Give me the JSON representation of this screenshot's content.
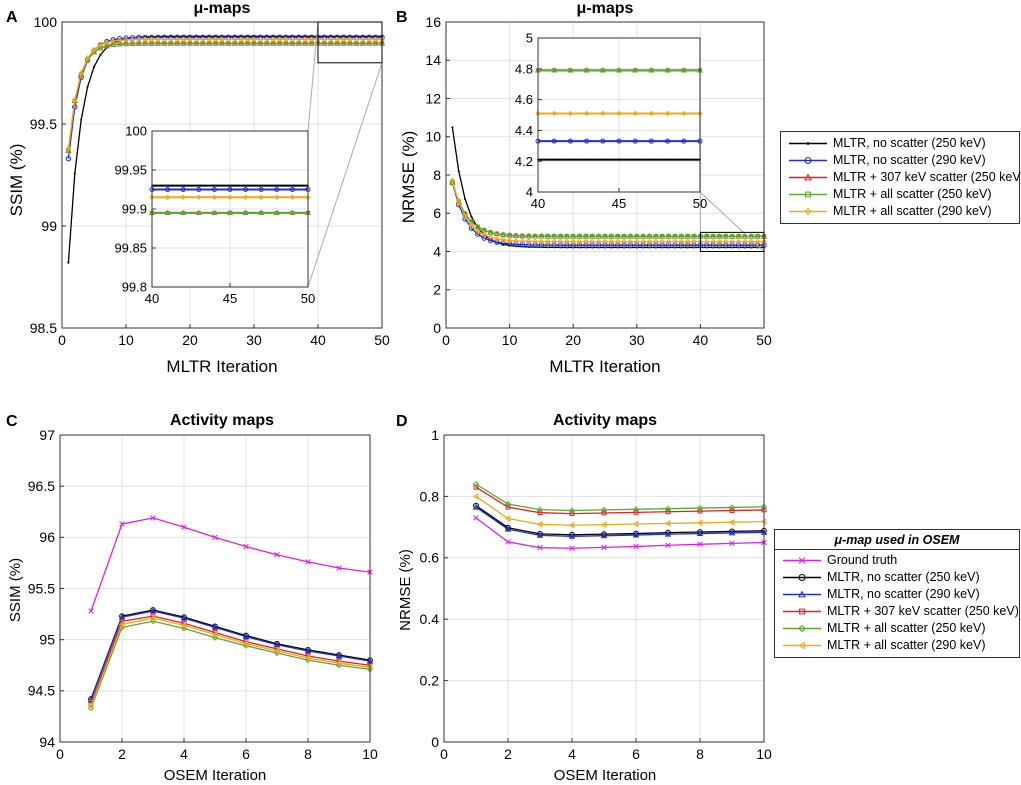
{
  "panels": [
    {
      "letter": "A",
      "title": "μ-maps",
      "xlabel": "MLTR Iteration",
      "ylabel": "SSIM (%)",
      "xlim": [
        0,
        50
      ],
      "ylim": [
        98.5,
        100
      ],
      "xticks": [
        "0",
        "10",
        "20",
        "30",
        "40",
        "50"
      ],
      "yticks": [
        "98.5",
        "99",
        "99.5",
        "100"
      ],
      "inset": {
        "xlim": [
          40,
          50
        ],
        "ylim": [
          99.8,
          100
        ],
        "xticks": [
          "40",
          "45",
          "50"
        ],
        "yticks": [
          "99.8",
          "99.85",
          "99.9",
          "99.95",
          "100"
        ]
      }
    },
    {
      "letter": "B",
      "title": "μ-maps",
      "xlabel": "MLTR Iteration",
      "ylabel": "NRMSE (%)",
      "xlim": [
        0,
        50
      ],
      "ylim": [
        0,
        16
      ],
      "xticks": [
        "0",
        "10",
        "20",
        "30",
        "40",
        "50"
      ],
      "yticks": [
        "0",
        "2",
        "4",
        "6",
        "8",
        "10",
        "12",
        "14",
        "16"
      ],
      "inset": {
        "xlim": [
          40,
          50
        ],
        "ylim": [
          4,
          5
        ],
        "xticks": [
          "40",
          "45",
          "50"
        ],
        "yticks": [
          "4",
          "4.2",
          "4.4",
          "4.6",
          "4.8",
          "5"
        ]
      }
    },
    {
      "letter": "C",
      "title": "Activity maps",
      "xlabel": "OSEM Iteration",
      "ylabel": "SSIM (%)",
      "xlim": [
        0,
        10
      ],
      "ylim": [
        94,
        97
      ],
      "xticks": [
        "0",
        "2",
        "4",
        "6",
        "8",
        "10"
      ],
      "yticks": [
        "94",
        "94.5",
        "95",
        "95.5",
        "96",
        "96.5",
        "97"
      ]
    },
    {
      "letter": "D",
      "title": "Activity maps",
      "xlabel": "OSEM Iteration",
      "ylabel": "NRMSE (%)",
      "xlim": [
        0,
        10
      ],
      "ylim": [
        0,
        1
      ],
      "xticks": [
        "0",
        "2",
        "4",
        "6",
        "8",
        "10"
      ],
      "yticks": [
        "0",
        "0.2",
        "0.4",
        "0.6",
        "0.8",
        "1"
      ]
    }
  ],
  "legend_top": {
    "entries": [
      {
        "label": "MLTR, no scatter (250 keV)",
        "color": "#000000",
        "marker": "dot"
      },
      {
        "label": "MLTR, no scatter (290 keV)",
        "color": "#1f2ed8",
        "marker": "circle"
      },
      {
        "label": "MLTR + 307 keV scatter (250 keV)",
        "color": "#e02020",
        "marker": "triangle"
      },
      {
        "label": "MLTR + all scatter (250 keV)",
        "color": "#5fa832",
        "marker": "square"
      },
      {
        "label": "MLTR + all scatter (290 keV)",
        "color": "#f0a818",
        "marker": "diamond"
      }
    ]
  },
  "legend_bottom": {
    "title": "μ-map used in OSEM",
    "entries": [
      {
        "label": "Ground truth",
        "color": "#e020e0",
        "marker": "x"
      },
      {
        "label": "MLTR, no scatter (250 keV)",
        "color": "#000000",
        "marker": "circle"
      },
      {
        "label": "MLTR, no scatter (290 keV)",
        "color": "#1f2ed8",
        "marker": "triangle"
      },
      {
        "label": "MLTR + 307 keV scatter (250 keV)",
        "color": "#e02020",
        "marker": "square"
      },
      {
        "label": "MLTR + all scatter (250 keV)",
        "color": "#5fa832",
        "marker": "diamond"
      },
      {
        "label": "MLTR + all scatter (290 keV)",
        "color": "#f0a818",
        "marker": "ltriangle"
      }
    ]
  },
  "chart_data": [
    {
      "type": "line",
      "panel": "A",
      "title": "μ-maps",
      "xlabel": "MLTR Iteration",
      "ylabel": "SSIM (%)",
      "xlim": [
        0,
        50
      ],
      "ylim": [
        98.5,
        100
      ],
      "grid": true,
      "x": [
        1,
        2,
        3,
        4,
        5,
        6,
        7,
        8,
        9,
        10,
        11,
        12,
        13,
        14,
        15,
        16,
        17,
        18,
        19,
        20,
        21,
        22,
        23,
        24,
        25,
        26,
        27,
        28,
        29,
        30,
        31,
        32,
        33,
        34,
        35,
        36,
        37,
        38,
        39,
        40,
        41,
        42,
        43,
        44,
        45,
        46,
        47,
        48,
        49,
        50
      ],
      "series": [
        {
          "name": "MLTR, no scatter (250 keV)",
          "start": 98.82,
          "plateau": 99.93,
          "tau": 2.0
        },
        {
          "name": "MLTR, no scatter (290 keV)",
          "start": 99.33,
          "plateau": 99.925,
          "tau": 1.8
        },
        {
          "name": "MLTR + 307 keV scatter (250 keV)",
          "start": 99.37,
          "plateau": 99.895,
          "tau": 1.6
        },
        {
          "name": "MLTR + all scatter (250 keV)",
          "start": 99.37,
          "plateau": 99.895,
          "tau": 1.6
        },
        {
          "name": "MLTR + all scatter (290 keV)",
          "start": 99.38,
          "plateau": 99.915,
          "tau": 1.7
        }
      ],
      "inset": {
        "xlim": [
          40,
          50
        ],
        "ylim": [
          99.8,
          100
        ],
        "values": [
          99.93,
          99.925,
          99.895,
          99.895,
          99.915
        ]
      }
    },
    {
      "type": "line",
      "panel": "B",
      "title": "μ-maps",
      "xlabel": "MLTR Iteration",
      "ylabel": "NRMSE (%)",
      "xlim": [
        0,
        50
      ],
      "ylim": [
        0,
        16
      ],
      "grid": true,
      "x": [
        1,
        2,
        3,
        4,
        5,
        6,
        7,
        8,
        9,
        10,
        11,
        12,
        13,
        14,
        15,
        16,
        17,
        18,
        19,
        20,
        21,
        22,
        23,
        24,
        25,
        26,
        27,
        28,
        29,
        30,
        31,
        32,
        33,
        34,
        35,
        36,
        37,
        38,
        39,
        40,
        41,
        42,
        43,
        44,
        45,
        46,
        47,
        48,
        49,
        50
      ],
      "series": [
        {
          "name": "MLTR, no scatter (250 keV)",
          "start": 10.5,
          "plateau": 4.21,
          "tau": 2.2
        },
        {
          "name": "MLTR, no scatter (290 keV)",
          "start": 7.6,
          "plateau": 4.33,
          "tau": 2.3
        },
        {
          "name": "MLTR + 307 keV scatter (250 keV)",
          "start": 7.6,
          "plateau": 4.79,
          "tau": 2.3
        },
        {
          "name": "MLTR + all scatter (250 keV)",
          "start": 7.6,
          "plateau": 4.79,
          "tau": 2.3
        },
        {
          "name": "MLTR + all scatter (290 keV)",
          "start": 7.7,
          "plateau": 4.51,
          "tau": 2.3
        }
      ],
      "inset": {
        "xlim": [
          40,
          50
        ],
        "ylim": [
          4,
          5
        ],
        "values": [
          4.21,
          4.33,
          4.79,
          4.79,
          4.51
        ]
      }
    },
    {
      "type": "line",
      "panel": "C",
      "title": "Activity maps",
      "xlabel": "OSEM Iteration",
      "ylabel": "SSIM (%)",
      "xlim": [
        0,
        10
      ],
      "ylim": [
        94,
        97
      ],
      "grid": true,
      "x": [
        1,
        2,
        3,
        4,
        5,
        6,
        7,
        8,
        9,
        10
      ],
      "series": [
        {
          "name": "Ground truth",
          "values": [
            95.28,
            96.13,
            96.19,
            96.1,
            96.0,
            95.91,
            95.83,
            95.76,
            95.7,
            95.66
          ]
        },
        {
          "name": "MLTR, no scatter (250 keV)",
          "values": [
            94.42,
            95.23,
            95.29,
            95.22,
            95.13,
            95.04,
            94.96,
            94.9,
            94.85,
            94.8
          ]
        },
        {
          "name": "MLTR, no scatter (290 keV)",
          "values": [
            94.41,
            95.22,
            95.28,
            95.21,
            95.12,
            95.03,
            94.95,
            94.89,
            94.84,
            94.79
          ]
        },
        {
          "name": "MLTR + 307 keV scatter (250 keV)",
          "values": [
            94.37,
            95.18,
            95.23,
            95.16,
            95.07,
            94.98,
            94.91,
            94.84,
            94.79,
            94.75
          ]
        },
        {
          "name": "MLTR + all scatter (250 keV)",
          "values": [
            94.33,
            95.12,
            95.18,
            95.11,
            95.02,
            94.94,
            94.87,
            94.8,
            94.75,
            94.71
          ]
        },
        {
          "name": "MLTR + all scatter (290 keV)",
          "values": [
            94.35,
            95.15,
            95.21,
            95.14,
            95.05,
            94.96,
            94.89,
            94.82,
            94.77,
            94.73
          ]
        }
      ]
    },
    {
      "type": "line",
      "panel": "D",
      "title": "Activity maps",
      "xlabel": "OSEM Iteration",
      "ylabel": "NRMSE (%)",
      "xlim": [
        0,
        10
      ],
      "ylim": [
        0,
        1
      ],
      "grid": true,
      "x": [
        1,
        2,
        3,
        4,
        5,
        6,
        7,
        8,
        9,
        10
      ],
      "series": [
        {
          "name": "Ground truth",
          "values": [
            0.73,
            0.652,
            0.633,
            0.631,
            0.634,
            0.637,
            0.641,
            0.644,
            0.647,
            0.65
          ]
        },
        {
          "name": "MLTR, no scatter (250 keV)",
          "values": [
            0.77,
            0.698,
            0.678,
            0.675,
            0.677,
            0.679,
            0.682,
            0.684,
            0.686,
            0.688
          ]
        },
        {
          "name": "MLTR, no scatter (290 keV)",
          "values": [
            0.765,
            0.693,
            0.673,
            0.67,
            0.672,
            0.674,
            0.677,
            0.679,
            0.681,
            0.683
          ]
        },
        {
          "name": "MLTR + 307 keV scatter (250 keV)",
          "values": [
            0.83,
            0.765,
            0.747,
            0.744,
            0.746,
            0.748,
            0.75,
            0.752,
            0.754,
            0.756
          ]
        },
        {
          "name": "MLTR + all scatter (250 keV)",
          "values": [
            0.84,
            0.775,
            0.757,
            0.754,
            0.756,
            0.758,
            0.76,
            0.762,
            0.764,
            0.766
          ]
        },
        {
          "name": "MLTR + all scatter (290 keV)",
          "values": [
            0.8,
            0.728,
            0.709,
            0.706,
            0.708,
            0.71,
            0.712,
            0.714,
            0.716,
            0.718
          ]
        }
      ]
    }
  ]
}
